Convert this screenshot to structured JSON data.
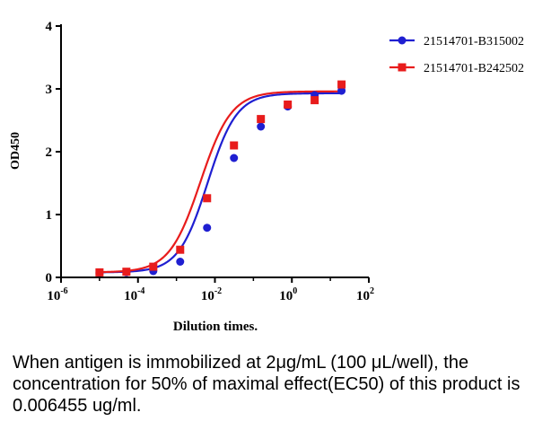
{
  "chart_data": {
    "type": "scatter",
    "title": "",
    "xlabel": "Dilution times.",
    "ylabel": "OD450",
    "x_scale": "log",
    "xlim": [
      1e-06,
      100
    ],
    "ylim": [
      0,
      4
    ],
    "x_ticks": [
      {
        "value": 1e-06,
        "base": "10",
        "exp": "-6"
      },
      {
        "value": 0.0001,
        "base": "10",
        "exp": "-4"
      },
      {
        "value": 0.01,
        "base": "10",
        "exp": "-2"
      },
      {
        "value": 1,
        "base": "10",
        "exp": "0"
      },
      {
        "value": 100,
        "base": "10",
        "exp": "2"
      }
    ],
    "y_ticks": [
      "0",
      "1",
      "2",
      "3",
      "4"
    ],
    "legend_position": "top-right",
    "grid": false,
    "series": [
      {
        "name": "21514701-B315002",
        "color": "#1f1fd1",
        "marker": "circle",
        "x": [
          1e-05,
          5e-05,
          0.00025,
          0.00125,
          0.00625,
          0.03125,
          0.15625,
          0.78125,
          3.90625,
          19.53125
        ],
        "y": [
          0.07,
          0.08,
          0.1,
          0.25,
          0.79,
          1.9,
          2.4,
          2.72,
          2.9,
          2.97
        ],
        "curve": {
          "bottom": 0.08,
          "top": 2.93,
          "ec50": 0.006455,
          "hill": 1.15
        }
      },
      {
        "name": "21514701-B242502",
        "color": "#e81c1c",
        "marker": "square",
        "x": [
          1e-05,
          5e-05,
          0.00025,
          0.00125,
          0.00625,
          0.03125,
          0.15625,
          0.78125,
          3.90625,
          19.53125
        ],
        "y": [
          0.08,
          0.09,
          0.17,
          0.44,
          1.26,
          2.1,
          2.52,
          2.75,
          2.82,
          3.07
        ],
        "curve": {
          "bottom": 0.08,
          "top": 2.96,
          "ec50": 0.0042,
          "hill": 1.08
        }
      }
    ]
  },
  "caption": "When antigen is immobilized at 2μg/mL (100 μL/well), the concentration for 50% of maximal effect(EC50) of this product is  0.006455 ug/ml."
}
